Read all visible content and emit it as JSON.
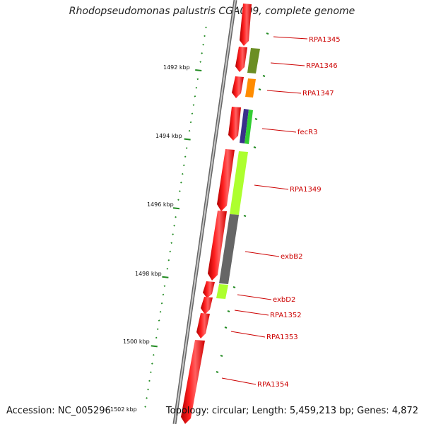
{
  "title": "Rhodopseudomonas palustris CGA009, complete genome",
  "accession_label": "Accession: NC_005296",
  "topology_label": "Topology: circular; Length: 5,459,213 bp; Genes: 4,872",
  "tick_labels": [
    "1492 kbp",
    "1494 kbp",
    "1496 kbp",
    "1498 kbp",
    "1500 kbp",
    "1502 kbp"
  ],
  "genes": [
    {
      "name": "RPA1345"
    },
    {
      "name": "RPA1346"
    },
    {
      "name": "RPA1347"
    },
    {
      "name": "fecR3"
    },
    {
      "name": "RPA1349"
    },
    {
      "name": "exbB2"
    },
    {
      "name": "exbD2"
    },
    {
      "name": "RPA1352"
    },
    {
      "name": "RPA1353"
    },
    {
      "name": "RPA1354"
    }
  ],
  "colors": {
    "forward_gene": "#ff0000",
    "backbone": "#888888",
    "tick": "#228b22",
    "label": "#cc0000",
    "cog_olive": "#6b8e23",
    "cog_orange": "#ff8c00",
    "cog_navy": "#3a2f8a",
    "cog_green": "#32cd32",
    "cog_lime": "#adff2f",
    "cog_gray": "#666666"
  }
}
